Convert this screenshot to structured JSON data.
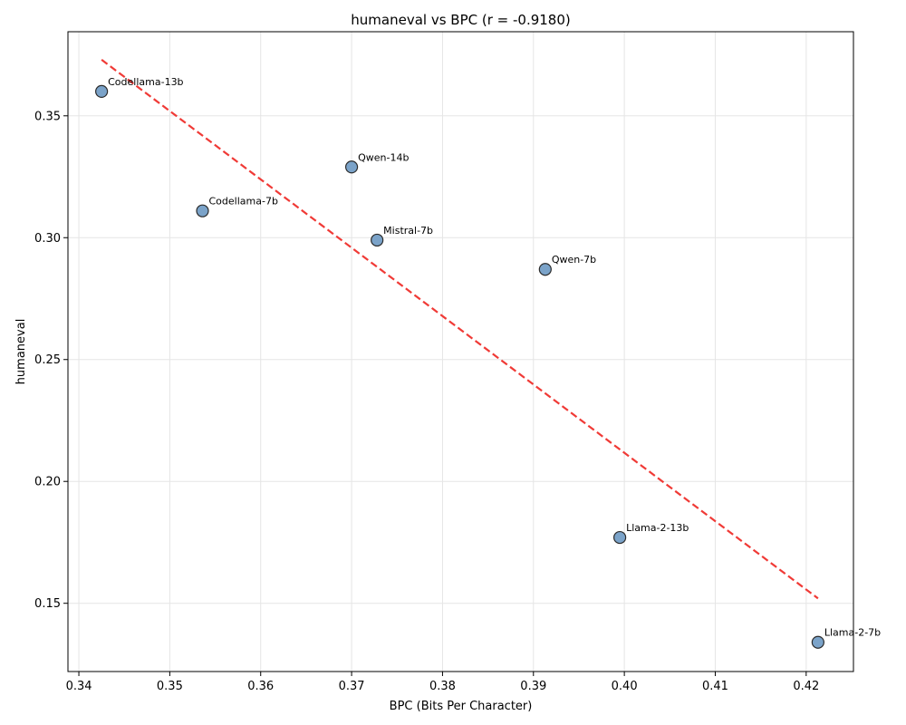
{
  "chart_data": {
    "type": "scatter",
    "title": "humaneval vs BPC (r = -0.9180)",
    "xlabel": "BPC (Bits Per Character)",
    "ylabel": "humaneval",
    "xlim": [
      0.3388,
      0.4252
    ],
    "ylim": [
      0.122,
      0.3845
    ],
    "xticks": [
      "0.34",
      "0.35",
      "0.36",
      "0.37",
      "0.38",
      "0.39",
      "0.40",
      "0.41",
      "0.42"
    ],
    "yticks": [
      "0.15",
      "0.20",
      "0.25",
      "0.30",
      "0.35"
    ],
    "grid": true,
    "points": [
      {
        "label": "Codellama-13b",
        "x": 0.3425,
        "y": 0.36
      },
      {
        "label": "Qwen-14b",
        "x": 0.37,
        "y": 0.329
      },
      {
        "label": "Codellama-7b",
        "x": 0.3536,
        "y": 0.311
      },
      {
        "label": "Mistral-7b",
        "x": 0.3728,
        "y": 0.299
      },
      {
        "label": "Qwen-7b",
        "x": 0.3913,
        "y": 0.287
      },
      {
        "label": "Llama-2-13b",
        "x": 0.3995,
        "y": 0.177
      },
      {
        "label": "Llama-2-7b",
        "x": 0.4213,
        "y": 0.134
      }
    ],
    "trendline": {
      "x": [
        0.3425,
        0.4213
      ],
      "y": [
        0.373,
        0.152
      ],
      "style": "dashed"
    },
    "colors": {
      "point_fill": "#7ba3c9",
      "point_edge": "#2b2b2b",
      "trendline": "#f03a36",
      "grid": "#e5e5e5"
    }
  }
}
